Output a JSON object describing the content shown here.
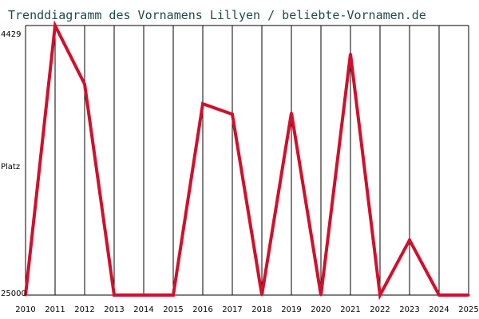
{
  "chart_data": {
    "type": "line",
    "title": "Trenddiagramm des Vornamens Lillyen / beliebte-Vornamen.de",
    "ylabel": "Platz",
    "y_top_label": "4429",
    "y_bottom_label": "25000",
    "ylim": [
      25000,
      4429
    ],
    "y_inverted": true,
    "grid": "vertical lines at each year",
    "line_color": "#d0102c",
    "categories": [
      "2010",
      "2011",
      "2012",
      "2013",
      "2014",
      "2015",
      "2016",
      "2017",
      "2018",
      "2019",
      "2020",
      "2021",
      "2022",
      "2023",
      "2024",
      "2025"
    ],
    "series": [
      {
        "values": [
          25000,
          4429,
          8900,
          25000,
          25000,
          25000,
          10400,
          11200,
          25000,
          11100,
          25000,
          6600,
          25000,
          20800,
          25000,
          25000
        ]
      }
    ]
  }
}
